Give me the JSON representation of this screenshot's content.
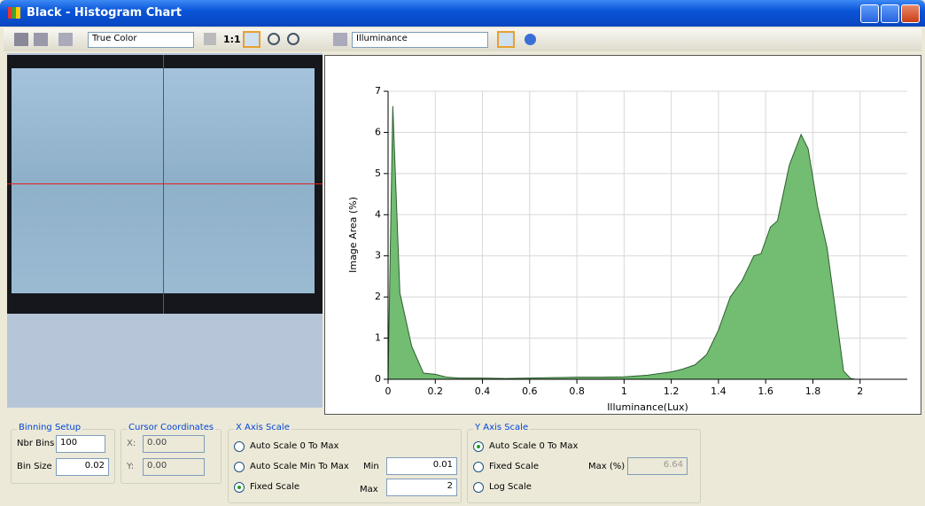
{
  "window": {
    "title": "Black - Histogram Chart"
  },
  "toolbar": {
    "color_mode": "True Color",
    "zoom_one_to_one": "1:1",
    "measure": "Illuminance"
  },
  "chart_data": {
    "type": "area",
    "x_label": "Illuminance(Lux)",
    "y_label": "Image Area (%)",
    "x": [
      0,
      0.02,
      0.05,
      0.1,
      0.15,
      0.2,
      0.25,
      0.3,
      0.4,
      0.5,
      0.6,
      0.7,
      0.8,
      0.9,
      1.0,
      1.1,
      1.2,
      1.25,
      1.3,
      1.35,
      1.4,
      1.45,
      1.5,
      1.55,
      1.58,
      1.62,
      1.65,
      1.7,
      1.75,
      1.78,
      1.82,
      1.86,
      1.9,
      1.93,
      1.96,
      1.98
    ],
    "values": [
      0,
      6.64,
      2.1,
      0.8,
      0.15,
      0.12,
      0.05,
      0.03,
      0.03,
      0.02,
      0.03,
      0.04,
      0.05,
      0.05,
      0.06,
      0.1,
      0.18,
      0.25,
      0.35,
      0.6,
      1.2,
      2.0,
      2.4,
      3.0,
      3.05,
      3.7,
      3.85,
      5.2,
      5.95,
      5.6,
      4.2,
      3.2,
      1.5,
      0.2,
      0.02,
      0
    ],
    "color": "#72bd72",
    "line_color": "#2f5f2f",
    "xlim": [
      0,
      2.2
    ],
    "ylim": [
      0,
      7
    ],
    "xticks": [
      0,
      0.2,
      0.4,
      0.6,
      0.8,
      1,
      1.2,
      1.4,
      1.6,
      1.8,
      2
    ],
    "yticks": [
      0,
      1,
      2,
      3,
      4,
      5,
      6,
      7
    ],
    "grid": true
  },
  "binning_setup": {
    "title": "Binning Setup",
    "nbr_bins_label": "Nbr Bins",
    "nbr_bins": "100",
    "bin_size_label": "Bin Size",
    "bin_size": "0.02"
  },
  "cursor_coordinates": {
    "title": "Cursor Coordinates",
    "x_label": "X:",
    "x": "0.00",
    "y_label": "Y:",
    "y": "0.00"
  },
  "x_axis_scale": {
    "title": "X Axis Scale",
    "options": [
      "Auto Scale 0 To Max",
      "Auto Scale Min To Max",
      "Fixed Scale"
    ],
    "min_label": "Min",
    "min": "0.01",
    "max_label": "Max",
    "max": "2"
  },
  "y_axis_scale": {
    "title": "Y Axis Scale",
    "options": [
      "Auto Scale 0 To Max",
      "Fixed Scale",
      "Log Scale"
    ],
    "max_label": "Max (%)",
    "max": "6.64"
  }
}
